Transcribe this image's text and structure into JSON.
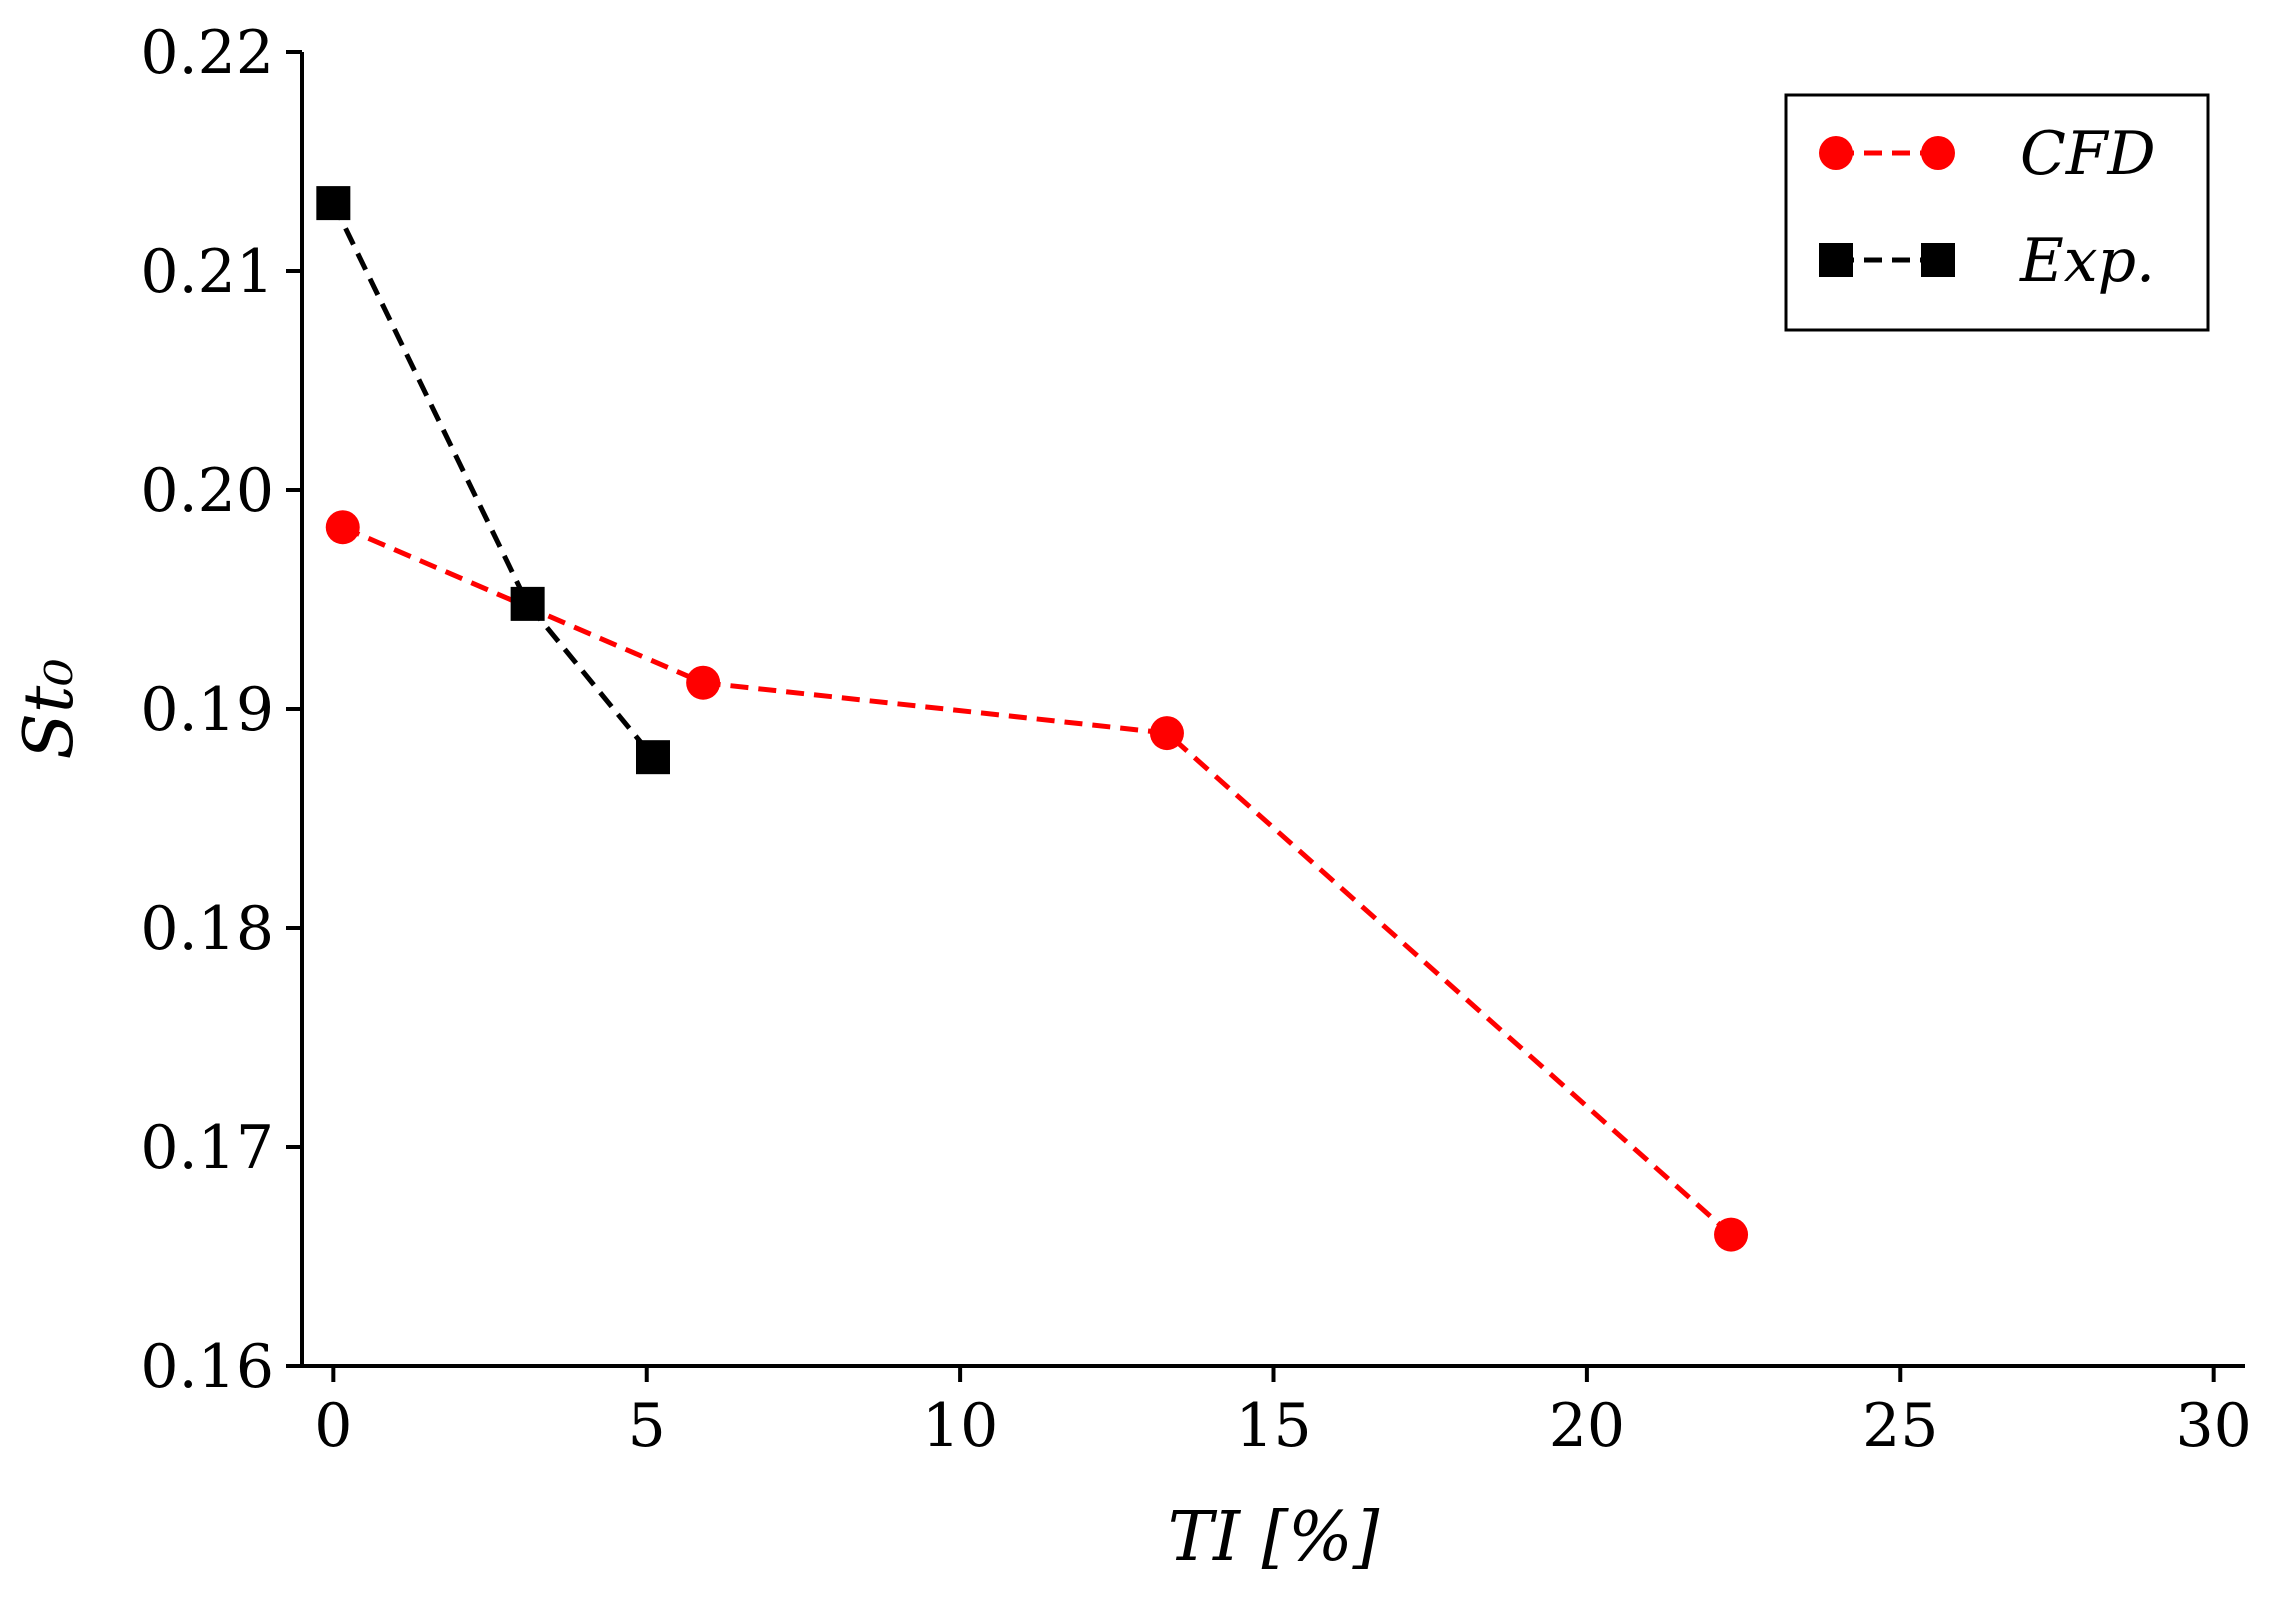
{
  "chart_data": {
    "type": "line",
    "title": "",
    "xlabel": "TI [%]",
    "ylabel": "St₀",
    "xlim": [
      -0.5,
      30.5
    ],
    "ylim": [
      0.16,
      0.22
    ],
    "xticks": [
      0,
      5,
      10,
      15,
      20,
      25,
      30
    ],
    "xtick_labels": [
      "0",
      "5",
      "10",
      "15",
      "20",
      "25",
      "30"
    ],
    "yticks": [
      0.16,
      0.17,
      0.18,
      0.19,
      0.2,
      0.21,
      0.22
    ],
    "ytick_labels": [
      "0.16",
      "0.17",
      "0.18",
      "0.19",
      "0.20",
      "0.21",
      "0.22"
    ],
    "grid": false,
    "legend_position": "top-right",
    "series": [
      {
        "name": "CFD",
        "color": "#ff0000",
        "marker": "circle",
        "linestyle": "dashed",
        "x": [
          0.15,
          5.9,
          13.3,
          22.3
        ],
        "y": [
          0.1983,
          0.1912,
          0.1889,
          0.166
        ]
      },
      {
        "name": "Exp.",
        "color": "#000000",
        "marker": "square",
        "linestyle": "dashed",
        "x": [
          0.0,
          3.1,
          5.1
        ],
        "y": [
          0.2131,
          0.1948,
          0.1878
        ]
      }
    ]
  }
}
